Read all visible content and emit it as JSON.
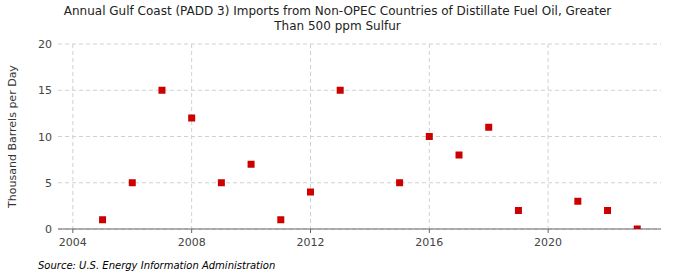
{
  "chart_data": {
    "type": "scatter",
    "title": "Annual Gulf Coast (PADD 3) Imports from Non-OPEC Countries of Distillate Fuel Oil, Greater\nThan 500 ppm Sulfur",
    "ylabel": "Thousand Barrels per Day",
    "source": "Source: U.S. Energy Information Administration",
    "x": [
      2005,
      2006,
      2007,
      2008,
      2009,
      2010,
      2011,
      2012,
      2013,
      2015,
      2016,
      2017,
      2018,
      2019,
      2021,
      2022,
      2023
    ],
    "values": [
      1,
      5,
      15,
      12,
      5,
      7,
      1,
      4,
      15,
      5,
      10,
      8,
      11,
      2,
      3,
      2,
      0
    ],
    "color": "#cc0000",
    "marker": "square",
    "xlim": [
      2003.5,
      2023.8
    ],
    "ylim": [
      0,
      20
    ],
    "yticks": [
      0,
      5,
      10,
      15,
      20
    ],
    "xticks": [
      2004,
      2008,
      2012,
      2016,
      2020
    ],
    "grid": true
  }
}
